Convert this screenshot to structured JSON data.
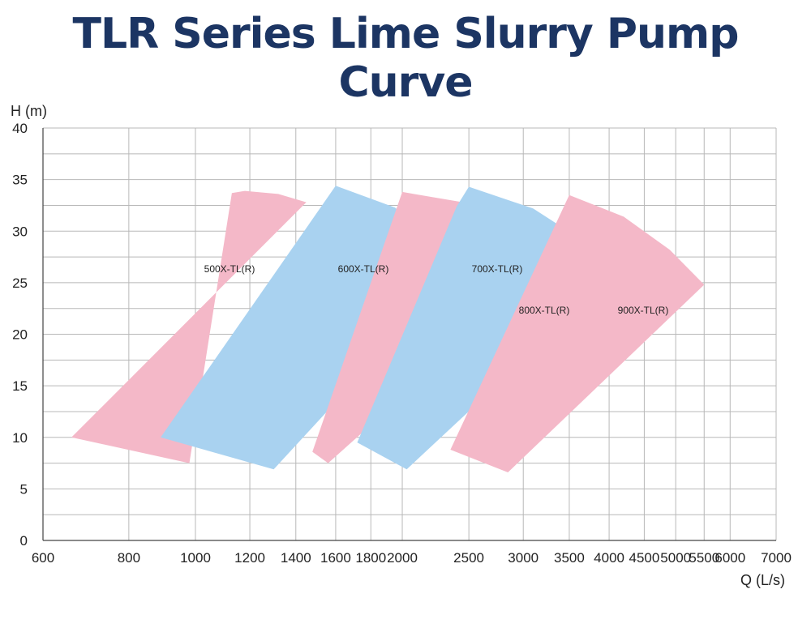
{
  "title": "TLR Series Lime Slurry Pump Curve",
  "chart_data": {
    "type": "area",
    "title": "TLR Series Lime Slurry Pump Curve",
    "xlabel": "Q (L/s)",
    "ylabel": "H (m)",
    "x_scale": "log",
    "xlim": [
      600,
      7000
    ],
    "ylim": [
      0,
      40
    ],
    "grid": true,
    "x_ticks": [
      600,
      800,
      1000,
      1200,
      1400,
      1600,
      1800,
      2000,
      2500,
      3000,
      3500,
      4000,
      4500,
      5000,
      5500,
      6000,
      7000
    ],
    "y_ticks": [
      0,
      5,
      10,
      15,
      20,
      25,
      30,
      35,
      40
    ],
    "colors": {
      "pink": "#f4b8c8",
      "blue": "#a9d2f0",
      "grid": "#b8b8b8",
      "title": "#1c3563"
    },
    "series": [
      {
        "name": "500X-TL(R)",
        "color": "#f4b8c8",
        "region": [
          [
            660,
            10
          ],
          [
            980,
            7.5
          ],
          [
            1130,
            33.7
          ],
          [
            1180,
            33.9
          ],
          [
            1320,
            33.6
          ],
          [
            1450,
            32.8
          ]
        ]
      },
      {
        "name": "600X-TL(R)",
        "color": "#a9d2f0",
        "region": [
          [
            890,
            10
          ],
          [
            1300,
            6.9
          ],
          [
            2450,
            26.8
          ],
          [
            2250,
            29.2
          ],
          [
            1950,
            32.3
          ],
          [
            1600,
            34.4
          ]
        ]
      },
      {
        "name": "700X-TL(R)",
        "color": "#f4b8c8",
        "region": [
          [
            1480,
            8.6
          ],
          [
            1560,
            7.5
          ],
          [
            3250,
            26.5
          ],
          [
            2900,
            29.5
          ],
          [
            2450,
            32.8
          ],
          [
            2000,
            33.8
          ]
        ]
      },
      {
        "name": "800X-TL(R)",
        "color": "#a9d2f0",
        "region": [
          [
            1720,
            9.5
          ],
          [
            2030,
            6.9
          ],
          [
            4150,
            26.2
          ],
          [
            3700,
            28.9
          ],
          [
            3100,
            32.2
          ],
          [
            2500,
            34.3
          ],
          [
            2400,
            32.4
          ]
        ]
      },
      {
        "name": "900X-TL(R)",
        "color": "#f4b8c8",
        "region": [
          [
            2350,
            8.8
          ],
          [
            2850,
            6.6
          ],
          [
            5500,
            24.8
          ],
          [
            4900,
            28.2
          ],
          [
            4200,
            31.4
          ],
          [
            3500,
            33.5
          ]
        ]
      }
    ]
  }
}
